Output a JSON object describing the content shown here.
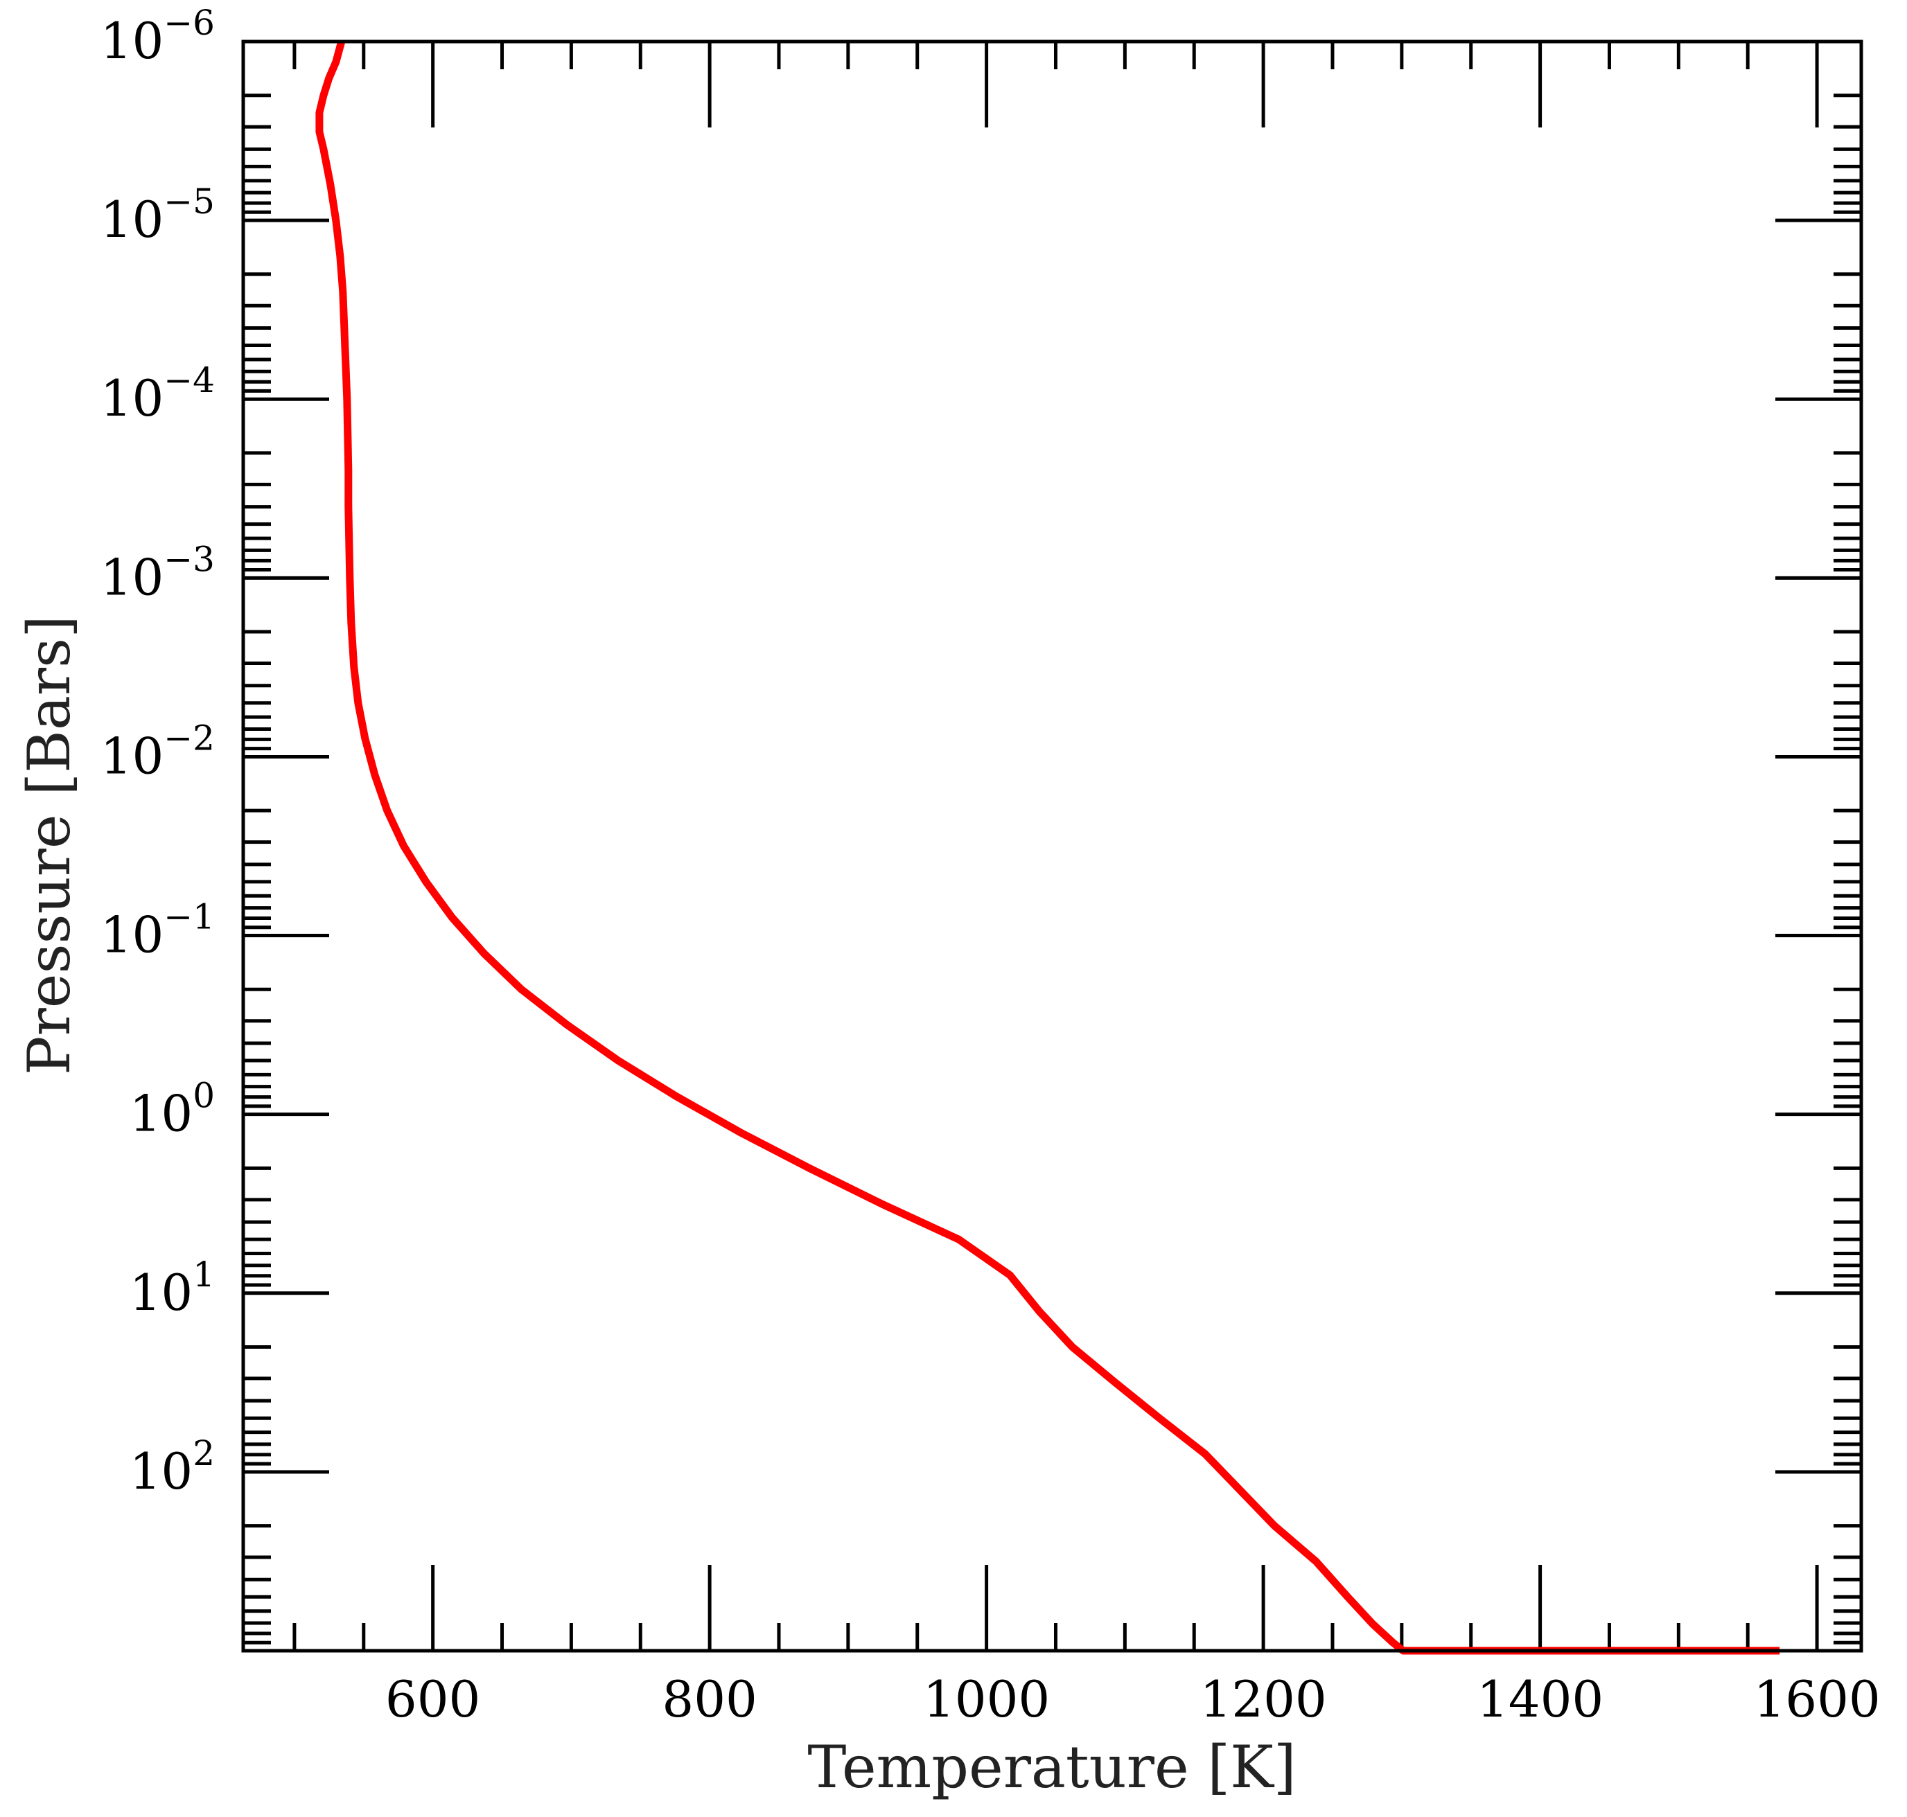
{
  "chart_data": {
    "type": "line",
    "xlabel": "Temperature [K]",
    "ylabel": "Pressure [Bars]",
    "xlim": [
      463,
      1632
    ],
    "ylim": [
      1000,
      1e-06
    ],
    "yscale": "log",
    "y_inverted": true,
    "grid": false,
    "legend": "none",
    "xticks": [
      600,
      800,
      1000,
      1200,
      1400,
      1600
    ],
    "xtick_labels": [
      "600",
      "800",
      "1000",
      "1200",
      "1400",
      "1600"
    ],
    "yticks": [
      1e-06,
      1e-05,
      0.0001,
      0.001,
      0.01,
      0.1,
      1,
      10,
      100
    ],
    "ytick_labels": [
      {
        "base": "10",
        "exp": "−6"
      },
      {
        "base": "10",
        "exp": "−5"
      },
      {
        "base": "10",
        "exp": "−4"
      },
      {
        "base": "10",
        "exp": "−3"
      },
      {
        "base": "10",
        "exp": "−2"
      },
      {
        "base": "10",
        "exp": "−1"
      },
      {
        "base": "10",
        "exp": "0"
      },
      {
        "base": "10",
        "exp": "1"
      },
      {
        "base": "10",
        "exp": "2"
      }
    ],
    "series": [
      {
        "color": "#ff0000",
        "x": [
          534,
          530,
          525,
          521,
          518,
          518,
          521,
          526,
          530,
          533,
          535,
          536,
          537,
          538,
          538.5,
          539,
          539,
          539.5,
          540,
          541,
          543,
          546,
          551,
          558,
          567,
          579,
          595,
          614,
          637,
          664,
          697,
          734,
          776,
          822,
          872,
          924,
          980,
          1017,
          1038,
          1062,
          1093,
          1125,
          1158,
          1183,
          1208,
          1238,
          1261,
          1279,
          1293,
          1301,
          1305,
          1309,
          1315,
          1322,
          1330,
          1340,
          1370,
          1410,
          1450,
          1500,
          1573
        ],
        "y": [
          1e-06,
          1.3e-06,
          1.6e-06,
          2e-06,
          2.5e-06,
          3.2e-06,
          4e-06,
          6.3e-06,
          1e-05,
          1.58e-05,
          2.51e-05,
          3.98e-05,
          6.3e-05,
          0.0001,
          0.000158,
          0.000251,
          0.000398,
          0.00063,
          0.001,
          0.00178,
          0.00316,
          0.005,
          0.0079,
          0.0126,
          0.02,
          0.0316,
          0.05,
          0.0794,
          0.126,
          0.2,
          0.316,
          0.501,
          0.794,
          1.26,
          2,
          3.16,
          5.01,
          7.94,
          12.6,
          20,
          31.6,
          50.1,
          79.4,
          126,
          200,
          316,
          501,
          708,
          891,
          1000,
          1000,
          1000,
          1000,
          1000,
          1000,
          1000,
          1000,
          1000,
          1000,
          1000,
          1000
        ]
      }
    ]
  }
}
